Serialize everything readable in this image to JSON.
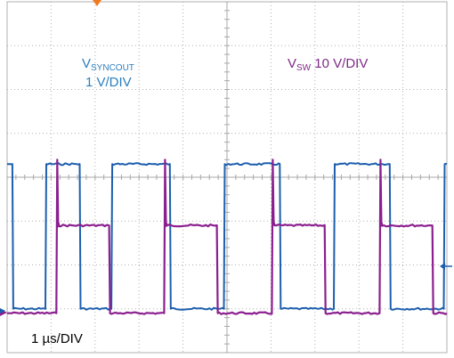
{
  "chart_data": {
    "type": "line",
    "title": "",
    "xlabel": "",
    "ylabel": "",
    "grid": true,
    "divisions": {
      "x": 10,
      "y": 8
    },
    "xlim": [
      0,
      10
    ],
    "ylim": [
      -4,
      4
    ],
    "trigger_marker": "top",
    "ground_marker_label": "",
    "labels": {
      "sync_prefix": "V",
      "sync_sub": "SYNCOUT",
      "sync_scale": "1 V/DIV",
      "sw_prefix": "V",
      "sw_sub": "SW",
      "sw_scale": "10 V/DIV",
      "timebase": "1 µs/DIV"
    },
    "series": [
      {
        "name": "VSYNCOUT",
        "color": "#1d5fae",
        "units": "V",
        "high": 3.3,
        "low": 0.0,
        "offset_div": -3.0,
        "rises": [
          0.87,
          2.37,
          4.93,
          7.43,
          9.93
        ],
        "falls": [
          0.12,
          1.65,
          3.7,
          6.2,
          8.7
        ],
        "start_level": "high"
      },
      {
        "name": "VSW",
        "color": "#8b1f8f",
        "units": "V",
        "high": 19,
        "low": -1,
        "offset_div": -3.0,
        "spike": 6,
        "rises": [
          1.12,
          3.57,
          6.02,
          8.47
        ],
        "falls": [
          2.32,
          4.77,
          7.22,
          9.67
        ],
        "start_level": "low"
      }
    ]
  }
}
